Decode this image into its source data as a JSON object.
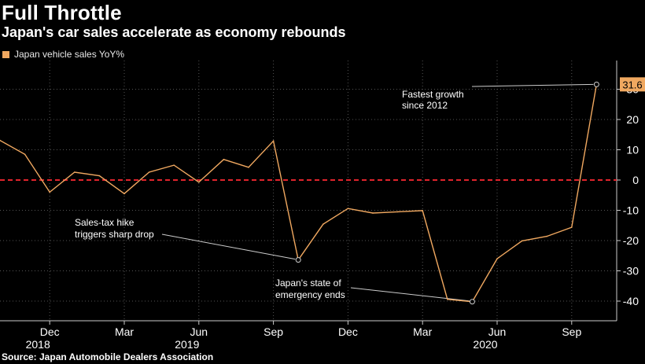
{
  "header": {
    "title": "Full Throttle",
    "subtitle": "Japan's car sales accelerate as economy rebounds"
  },
  "source": "Source: Japan Automobile Dealers Association",
  "colors": {
    "background": "#000000",
    "line": "#f0a860",
    "zero_line": "#e0242c",
    "grid": "#555555",
    "annotation": "#cccccc"
  },
  "chart_data": {
    "type": "line",
    "title": "Full Throttle",
    "subtitle": "Japan's car sales accelerate as economy rebounds",
    "xlabel": "",
    "ylabel": "",
    "ylim": [
      -47,
      39
    ],
    "yticks": [
      -40,
      -30,
      -20,
      -10,
      0,
      10,
      20,
      30
    ],
    "y_axis_position": "right",
    "grid": true,
    "legend_position": "top-left",
    "series": [
      {
        "name": "Japan vehicle sales YoY%",
        "x": [
          "2018-10",
          "2018-11",
          "2018-12",
          "2019-01",
          "2019-02",
          "2019-03",
          "2019-04",
          "2019-05",
          "2019-06",
          "2019-07",
          "2019-08",
          "2019-09",
          "2019-10",
          "2019-11",
          "2019-12",
          "2020-01",
          "2020-02",
          "2020-03",
          "2020-04",
          "2020-05",
          "2020-06",
          "2020-07",
          "2020-08",
          "2020-09",
          "2020-10"
        ],
        "values": [
          13.1,
          8.5,
          -4.0,
          2.6,
          1.4,
          -4.5,
          2.6,
          4.9,
          -0.7,
          6.8,
          4.2,
          12.9,
          -26.4,
          -14.6,
          -9.4,
          -10.9,
          -10.5,
          -10.1,
          -39.4,
          -40.2,
          -26.0,
          -20.1,
          -18.6,
          -15.6,
          31.6
        ]
      }
    ],
    "reference_line": {
      "y": 0,
      "style": "dashed"
    },
    "x_tick_labels": [
      "Dec",
      "Mar",
      "Jun",
      "Sep",
      "Dec",
      "Mar",
      "Jun",
      "Sep"
    ],
    "x_tick_dates": [
      "2018-12",
      "2019-03",
      "2019-06",
      "2019-09",
      "2019-12",
      "2020-03",
      "2020-06",
      "2020-09"
    ],
    "year_labels": [
      {
        "label": "2018",
        "date": "2018-12"
      },
      {
        "label": "2019",
        "date": "2019-06"
      },
      {
        "label": "2020",
        "date": "2020-06"
      }
    ],
    "last_value_label": "31.6",
    "annotations": [
      {
        "lines": [
          "Fastest growth",
          "since 2012"
        ],
        "point_date": "2020-10"
      },
      {
        "lines": [
          "Sales-tax hike",
          "triggers sharp drop"
        ],
        "point_date": "2019-10"
      },
      {
        "lines": [
          "Japan's state of",
          "emergency ends"
        ],
        "point_date": "2020-05"
      }
    ]
  }
}
